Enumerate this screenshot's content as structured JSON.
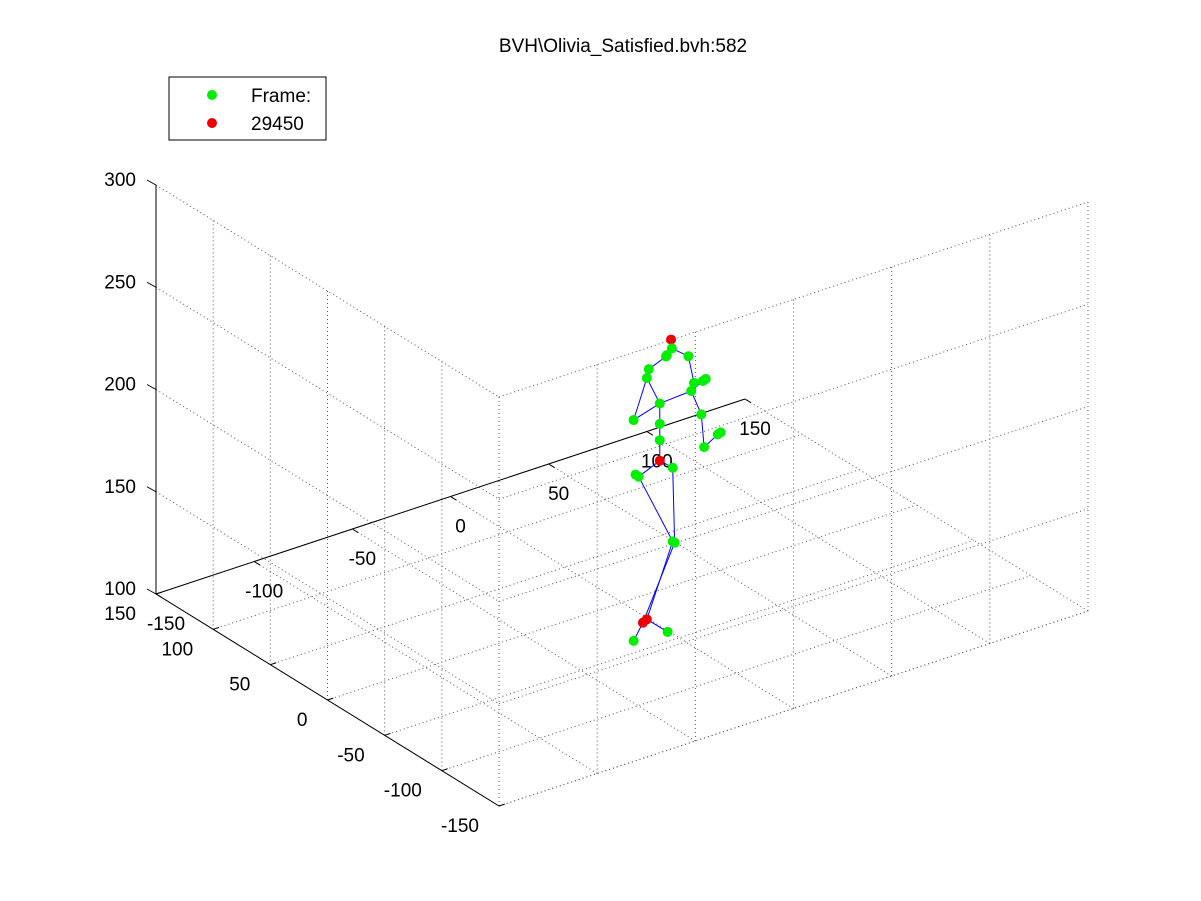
{
  "chart_data": {
    "type": "scatter",
    "subtype": "3d-skeleton",
    "title": "BVH\\Olivia_Satisfied.bvh:582",
    "legend": {
      "placement": "top-left",
      "entries": [
        {
          "label": "Frame:",
          "color": "#00ee00"
        },
        {
          "label": "29450",
          "color": "#ee0000"
        }
      ]
    },
    "axes": {
      "x": {
        "ticks": [
          -150,
          -100,
          -50,
          0,
          50,
          100,
          150
        ],
        "range": [
          -150,
          150
        ]
      },
      "y": {
        "ticks": [
          -150,
          -100,
          -50,
          0,
          50,
          100,
          150
        ],
        "range": [
          -150,
          150
        ]
      },
      "z": {
        "ticks": [
          100,
          150,
          200,
          250,
          300
        ],
        "range": [
          100,
          300
        ]
      }
    },
    "grid": true,
    "colors": {
      "joint": "#00ee00",
      "highlight": "#ee0000",
      "bone": "#0000ff"
    },
    "joints": [
      {
        "id": "head_top",
        "x": 18,
        "y": -12,
        "z": 227,
        "color": "red"
      },
      {
        "id": "neck",
        "x": 19,
        "y": -11,
        "z": 222,
        "color": "green"
      },
      {
        "id": "neck2",
        "x": 17,
        "y": -10,
        "z": 219,
        "color": "green"
      },
      {
        "id": "neck3",
        "x": 16,
        "y": -11,
        "z": 219,
        "color": "green"
      },
      {
        "id": "r_clav",
        "x": 9,
        "y": -8,
        "z": 214,
        "color": "green"
      },
      {
        "id": "r_shoulder",
        "x": 8,
        "y": -8,
        "z": 210,
        "color": "green"
      },
      {
        "id": "r_elbow",
        "x": 3,
        "y": -5,
        "z": 190,
        "color": "green"
      },
      {
        "id": "r_hand",
        "x": 4,
        "y": -5,
        "z": 163,
        "color": "green"
      },
      {
        "id": "l_shoulder",
        "x": 28,
        "y": -10,
        "z": 215,
        "color": "green"
      },
      {
        "id": "l_elbow",
        "x": 32,
        "y": -8,
        "z": 200,
        "color": "green"
      },
      {
        "id": "l_wrist",
        "x": 30,
        "y": -9,
        "z": 197,
        "color": "green"
      },
      {
        "id": "l_hand",
        "x": 36,
        "y": -9,
        "z": 200,
        "color": "green"
      },
      {
        "id": "l_hand2",
        "x": 38,
        "y": -8,
        "z": 200,
        "color": "green"
      },
      {
        "id": "l_arm_lo",
        "x": 34,
        "y": -11,
        "z": 185,
        "color": "green"
      },
      {
        "id": "l_fore",
        "x": 36,
        "y": -10,
        "z": 168,
        "color": "green"
      },
      {
        "id": "l_fing",
        "x": 43,
        "y": -10,
        "z": 172,
        "color": "green"
      },
      {
        "id": "l_fing2",
        "x": 45,
        "y": -9,
        "z": 172,
        "color": "green"
      },
      {
        "id": "spine3",
        "x": 14,
        "y": -9,
        "z": 196,
        "color": "green"
      },
      {
        "id": "spine2",
        "x": 14,
        "y": -9,
        "z": 186,
        "color": "green"
      },
      {
        "id": "spine1",
        "x": 14,
        "y": -9,
        "z": 178,
        "color": "green"
      },
      {
        "id": "hips",
        "x": 14,
        "y": -9,
        "z": 168,
        "color": "red"
      },
      {
        "id": "r_hip",
        "x": 5,
        "y": -6,
        "z": 162,
        "color": "green"
      },
      {
        "id": "l_hip",
        "x": 20,
        "y": -10,
        "z": 163,
        "color": "green"
      },
      {
        "id": "knee",
        "x": 20,
        "y": -10,
        "z": 127,
        "color": "green"
      },
      {
        "id": "knee2",
        "x": 21,
        "y": -10,
        "z": 126,
        "color": "green"
      },
      {
        "id": "ankle",
        "x": 8,
        "y": -8,
        "z": 92,
        "color": "red"
      },
      {
        "id": "ankle2",
        "x": 6,
        "y": -8,
        "z": 91,
        "color": "red"
      },
      {
        "id": "toe",
        "x": 18,
        "y": -9,
        "z": 83,
        "color": "green"
      },
      {
        "id": "heel",
        "x": 3,
        "y": -5,
        "z": 82,
        "color": "green"
      }
    ],
    "bones": [
      [
        "head_top",
        "neck"
      ],
      [
        "neck",
        "neck2"
      ],
      [
        "neck2",
        "neck3"
      ],
      [
        "neck3",
        "r_clav"
      ],
      [
        "r_clav",
        "r_shoulder"
      ],
      [
        "r_shoulder",
        "r_elbow"
      ],
      [
        "r_elbow",
        "spine3"
      ],
      [
        "neck",
        "l_shoulder"
      ],
      [
        "l_shoulder",
        "l_elbow"
      ],
      [
        "l_elbow",
        "l_wrist"
      ],
      [
        "l_wrist",
        "l_hand"
      ],
      [
        "l_hand",
        "l_hand2"
      ],
      [
        "l_wrist",
        "l_arm_lo"
      ],
      [
        "l_arm_lo",
        "l_fore"
      ],
      [
        "l_fore",
        "l_fing"
      ],
      [
        "l_fing",
        "l_fing2"
      ],
      [
        "r_shoulder",
        "spine3"
      ],
      [
        "spine3",
        "l_wrist"
      ],
      [
        "spine3",
        "spine2"
      ],
      [
        "spine2",
        "spine1"
      ],
      [
        "spine1",
        "hips"
      ],
      [
        "hips",
        "r_hip"
      ],
      [
        "hips",
        "l_hip"
      ],
      [
        "r_hip",
        "knee"
      ],
      [
        "l_hip",
        "knee2"
      ],
      [
        "knee",
        "ankle"
      ],
      [
        "knee2",
        "ankle2"
      ],
      [
        "ankle",
        "toe"
      ],
      [
        "ankle2",
        "heel"
      ]
    ]
  }
}
